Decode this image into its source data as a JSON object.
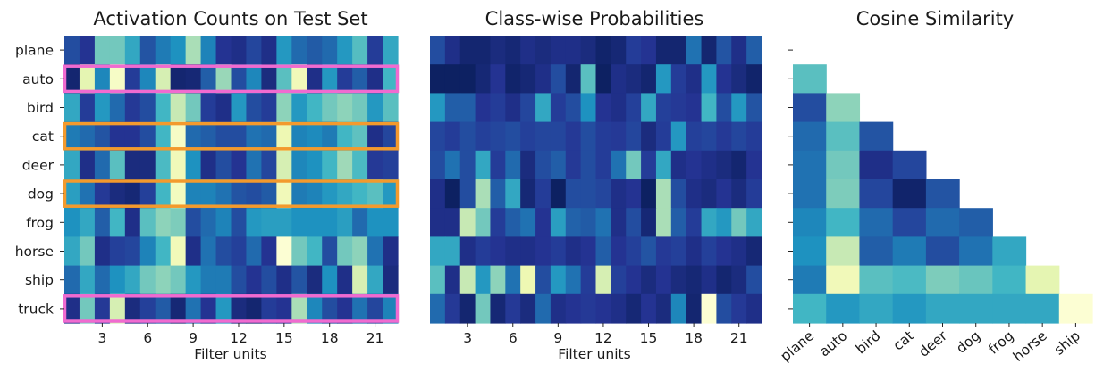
{
  "chart_data": [
    {
      "type": "heatmap",
      "title": "Activation Counts on Test Set",
      "xlabel": "Filter units",
      "ylabel": "",
      "columns": 22,
      "x_tick_labels": [
        "3",
        "6",
        "9",
        "12",
        "15",
        "18",
        "21"
      ],
      "x_tick_columns": [
        3,
        6,
        9,
        12,
        15,
        18,
        21
      ],
      "rows": [
        "plane",
        "auto",
        "bird",
        "cat",
        "deer",
        "dog",
        "frog",
        "horse",
        "ship",
        "truck"
      ],
      "colormap": "YlGnBu",
      "values": [
        [
          0.8,
          0.88,
          0.4,
          0.4,
          0.55,
          0.78,
          0.68,
          0.62,
          0.3,
          0.66,
          0.88,
          0.9,
          0.82,
          0.9,
          0.6,
          0.72,
          0.76,
          0.72,
          0.6,
          0.46,
          0.85,
          0.55
        ],
        [
          0.95,
          0.15,
          0.65,
          0.06,
          0.85,
          0.65,
          0.2,
          0.95,
          0.94,
          0.75,
          0.33,
          0.8,
          0.65,
          0.92,
          0.45,
          0.1,
          0.9,
          0.6,
          0.85,
          0.75,
          0.9,
          0.5
        ],
        [
          0.55,
          0.85,
          0.6,
          0.72,
          0.86,
          0.8,
          0.5,
          0.25,
          0.4,
          0.85,
          0.9,
          0.6,
          0.8,
          0.85,
          0.35,
          0.6,
          0.5,
          0.4,
          0.35,
          0.4,
          0.6,
          0.45
        ],
        [
          0.68,
          0.72,
          0.78,
          0.88,
          0.88,
          0.8,
          0.5,
          0.06,
          0.72,
          0.75,
          0.8,
          0.8,
          0.7,
          0.72,
          0.12,
          0.66,
          0.64,
          0.68,
          0.5,
          0.44,
          0.9,
          0.82
        ],
        [
          0.55,
          0.9,
          0.72,
          0.45,
          0.92,
          0.92,
          0.48,
          0.1,
          0.62,
          0.9,
          0.8,
          0.88,
          0.7,
          0.82,
          0.2,
          0.65,
          0.62,
          0.5,
          0.32,
          0.48,
          0.86,
          0.84
        ],
        [
          0.58,
          0.7,
          0.86,
          0.92,
          0.94,
          0.84,
          0.5,
          0.08,
          0.66,
          0.66,
          0.7,
          0.78,
          0.8,
          0.76,
          0.1,
          0.68,
          0.66,
          0.6,
          0.55,
          0.5,
          0.45,
          0.6
        ],
        [
          0.62,
          0.55,
          0.75,
          0.5,
          0.9,
          0.45,
          0.35,
          0.38,
          0.8,
          0.72,
          0.66,
          0.8,
          0.6,
          0.58,
          0.58,
          0.62,
          0.62,
          0.62,
          0.58,
          0.72,
          0.62,
          0.62
        ],
        [
          0.55,
          0.4,
          0.9,
          0.84,
          0.82,
          0.66,
          0.5,
          0.1,
          0.9,
          0.7,
          0.8,
          0.84,
          0.72,
          0.88,
          0.02,
          0.4,
          0.5,
          0.8,
          0.4,
          0.35,
          0.7,
          0.9
        ],
        [
          0.72,
          0.55,
          0.72,
          0.62,
          0.55,
          0.4,
          0.35,
          0.4,
          0.6,
          0.68,
          0.68,
          0.8,
          0.88,
          0.8,
          0.9,
          0.78,
          0.92,
          0.62,
          0.9,
          0.2,
          0.55,
          0.92
        ],
        [
          0.9,
          0.4,
          0.86,
          0.2,
          0.92,
          0.84,
          0.76,
          0.94,
          0.7,
          0.88,
          0.6,
          0.92,
          0.95,
          0.85,
          0.88,
          0.3,
          0.65,
          0.8,
          0.88,
          0.7,
          0.82,
          0.66
        ]
      ],
      "highlighted_rows": [
        {
          "row": "auto",
          "color": "#f06bd0"
        },
        {
          "row": "cat",
          "color": "#f39a2d"
        },
        {
          "row": "dog",
          "color": "#f39a2d"
        },
        {
          "row": "truck",
          "color": "#f06bd0"
        }
      ]
    },
    {
      "type": "heatmap",
      "title": "Class-wise Probabilities",
      "xlabel": "Filter units",
      "ylabel": "",
      "columns": 22,
      "x_tick_labels": [
        "3",
        "6",
        "9",
        "12",
        "15",
        "18",
        "21"
      ],
      "x_tick_columns": [
        3,
        6,
        9,
        12,
        15,
        18,
        21
      ],
      "rows": [
        "plane",
        "auto",
        "bird",
        "cat",
        "deer",
        "dog",
        "frog",
        "horse",
        "ship",
        "truck"
      ],
      "colormap": "YlGnBu",
      "values": [
        [
          0.8,
          0.9,
          0.95,
          0.95,
          0.92,
          0.94,
          0.9,
          0.92,
          0.9,
          0.9,
          0.92,
          0.96,
          0.94,
          0.85,
          0.88,
          0.95,
          0.95,
          0.7,
          0.95,
          0.78,
          0.9,
          0.75
        ],
        [
          0.98,
          0.98,
          0.98,
          0.94,
          0.88,
          0.96,
          0.94,
          0.9,
          0.8,
          0.95,
          0.45,
          0.98,
          0.9,
          0.92,
          0.95,
          0.6,
          0.85,
          0.9,
          0.6,
          0.88,
          0.92,
          0.96
        ],
        [
          0.6,
          0.75,
          0.75,
          0.88,
          0.85,
          0.9,
          0.82,
          0.55,
          0.85,
          0.8,
          0.62,
          0.88,
          0.9,
          0.84,
          0.55,
          0.84,
          0.86,
          0.88,
          0.5,
          0.8,
          0.6,
          0.78
        ],
        [
          0.82,
          0.85,
          0.8,
          0.84,
          0.82,
          0.8,
          0.84,
          0.82,
          0.82,
          0.86,
          0.8,
          0.85,
          0.86,
          0.82,
          0.92,
          0.85,
          0.6,
          0.84,
          0.82,
          0.86,
          0.82,
          0.85
        ],
        [
          0.8,
          0.7,
          0.8,
          0.55,
          0.85,
          0.72,
          0.92,
          0.8,
          0.75,
          0.86,
          0.8,
          0.85,
          0.7,
          0.4,
          0.85,
          0.55,
          0.9,
          0.88,
          0.9,
          0.92,
          0.95,
          0.88
        ],
        [
          0.9,
          0.98,
          0.8,
          0.3,
          0.75,
          0.55,
          0.94,
          0.85,
          0.98,
          0.8,
          0.8,
          0.82,
          0.9,
          0.88,
          0.98,
          0.3,
          0.8,
          0.9,
          0.92,
          0.88,
          0.92,
          0.85
        ],
        [
          0.9,
          0.9,
          0.25,
          0.4,
          0.85,
          0.75,
          0.7,
          0.88,
          0.58,
          0.74,
          0.76,
          0.7,
          0.9,
          0.8,
          0.94,
          0.3,
          0.75,
          0.85,
          0.55,
          0.6,
          0.4,
          0.55
        ],
        [
          0.55,
          0.55,
          0.9,
          0.85,
          0.88,
          0.9,
          0.9,
          0.88,
          0.85,
          0.9,
          0.88,
          0.75,
          0.88,
          0.84,
          0.78,
          0.86,
          0.84,
          0.9,
          0.84,
          0.88,
          0.9,
          0.94
        ],
        [
          0.45,
          0.9,
          0.25,
          0.6,
          0.35,
          0.7,
          0.12,
          0.8,
          0.6,
          0.7,
          0.85,
          0.2,
          0.84,
          0.88,
          0.92,
          0.88,
          0.92,
          0.94,
          0.9,
          0.95,
          0.92,
          0.8
        ],
        [
          0.72,
          0.86,
          0.95,
          0.4,
          0.94,
          0.86,
          0.92,
          0.72,
          0.9,
          0.88,
          0.86,
          0.88,
          0.9,
          0.94,
          0.88,
          0.92,
          0.65,
          0.95,
          0.02,
          0.8,
          0.86,
          0.9
        ]
      ]
    },
    {
      "type": "heatmap",
      "title": "Cosine Similarity",
      "xlabel": "",
      "ylabel": "",
      "rows": [
        "plane",
        "auto",
        "bird",
        "cat",
        "deer",
        "dog",
        "frog",
        "horse",
        "ship",
        "truck"
      ],
      "x_tick_labels": [
        "plane",
        "auto",
        "bird",
        "cat",
        "deer",
        "dog",
        "frog",
        "horse",
        "ship"
      ],
      "lower_triangle": true,
      "y_tick_labels": [
        "",
        "",
        "",
        "",
        "",
        "",
        "",
        "",
        "",
        ""
      ],
      "colormap": "YlGnBu",
      "values": [
        [],
        [
          0.45
        ],
        [
          0.8,
          0.35
        ],
        [
          0.72,
          0.45,
          0.78
        ],
        [
          0.7,
          0.4,
          0.9,
          0.82
        ],
        [
          0.7,
          0.38,
          0.82,
          0.96,
          0.78
        ],
        [
          0.65,
          0.5,
          0.72,
          0.82,
          0.72,
          0.75
        ],
        [
          0.62,
          0.25,
          0.75,
          0.68,
          0.8,
          0.7,
          0.55
        ],
        [
          0.68,
          0.1,
          0.45,
          0.48,
          0.38,
          0.42,
          0.5,
          0.15
        ],
        [
          0.5,
          0.6,
          0.55,
          0.6,
          0.55,
          0.55,
          0.55,
          0.55,
          0.02
        ]
      ]
    }
  ]
}
